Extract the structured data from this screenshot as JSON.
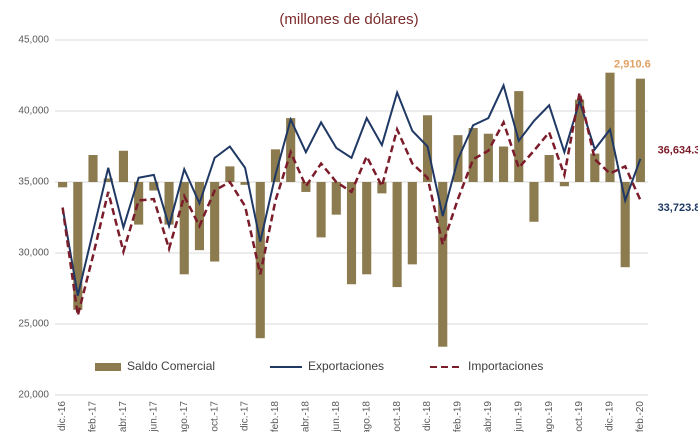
{
  "chart_data": {
    "type": "bar-line",
    "title": "(millones de dólares)",
    "categories": [
      "dic.-16",
      null,
      "feb.-17",
      null,
      "abr.-17",
      null,
      "jun.-17",
      null,
      "ago.-17",
      null,
      "oct.-17",
      null,
      "dic.-17",
      null,
      "feb.-18",
      null,
      "abr.-18",
      null,
      "jun.-18",
      null,
      "ago.-18",
      null,
      "oct.-18",
      null,
      "dic.-18",
      null,
      "feb.-19",
      null,
      "abr.-19",
      null,
      "jun.-19",
      null,
      "ago.-19",
      null,
      "oct.-19",
      null,
      "dic.-19",
      null,
      "feb.-20"
    ],
    "series": [
      {
        "name": "Saldo Comercial",
        "type": "bar",
        "axis": "y2",
        "color": "#8c7b4f",
        "label_color": "#e0a062",
        "values": [
          -150,
          -3600,
          760,
          100,
          880,
          -1200,
          -240,
          -1200,
          -2600,
          -1920,
          -2240,
          440,
          -80,
          -4400,
          920,
          1800,
          -280,
          -1560,
          -920,
          -2880,
          -2600,
          -320,
          -2960,
          -2320,
          1880,
          -4640,
          1320,
          1520,
          1360,
          1000,
          2560,
          -1120,
          760,
          -120,
          2320,
          800,
          3080,
          -2400,
          2910.6
        ],
        "value_labels": [
          null,
          null,
          null,
          null,
          null,
          null,
          null,
          null,
          null,
          null,
          null,
          null,
          null,
          null,
          null,
          null,
          null,
          null,
          null,
          null,
          null,
          null,
          null,
          null,
          null,
          null,
          null,
          null,
          null,
          null,
          null,
          null,
          null,
          null,
          null,
          null,
          null,
          null,
          "2,910.6"
        ]
      },
      {
        "name": "Exportaciones",
        "type": "line",
        "color": "#1f3864",
        "label_color": "#7b1c2a",
        "values": [
          33200,
          27000,
          31500,
          36000,
          31800,
          35300,
          35500,
          31900,
          35900,
          33500,
          36700,
          37500,
          36000,
          30800,
          35500,
          39400,
          37100,
          39200,
          37400,
          36700,
          39500,
          37600,
          41300,
          38600,
          37500,
          32600,
          36600,
          39000,
          39500,
          41800,
          37900,
          39300,
          40400,
          37100,
          40700,
          37300,
          38700,
          33700,
          36634.3
        ],
        "value_labels": [
          null,
          null,
          null,
          null,
          null,
          null,
          null,
          null,
          null,
          null,
          null,
          null,
          null,
          null,
          null,
          null,
          null,
          null,
          null,
          null,
          null,
          null,
          null,
          null,
          null,
          null,
          null,
          null,
          null,
          null,
          null,
          null,
          null,
          null,
          null,
          null,
          null,
          null,
          "36,634.3"
        ]
      },
      {
        "name": "Importaciones",
        "type": "line",
        "dashed": true,
        "color": "#7b1c2a",
        "label_color": "#1f3864",
        "values": [
          33200,
          25600,
          29800,
          34300,
          30100,
          33700,
          33800,
          30300,
          34000,
          31900,
          34400,
          35000,
          33300,
          28500,
          33700,
          37100,
          34700,
          36300,
          35000,
          34300,
          36800,
          34700,
          38700,
          36300,
          35300,
          30600,
          33800,
          36600,
          37200,
          39200,
          36000,
          37200,
          38500,
          35500,
          41300,
          36600,
          35600,
          36100,
          33723.8
        ],
        "value_labels": [
          null,
          null,
          null,
          null,
          null,
          null,
          null,
          null,
          null,
          null,
          null,
          null,
          null,
          null,
          null,
          null,
          null,
          null,
          null,
          null,
          null,
          null,
          null,
          null,
          null,
          null,
          null,
          null,
          null,
          null,
          null,
          null,
          null,
          null,
          null,
          null,
          null,
          null,
          "33,723.8"
        ]
      }
    ],
    "ylim": [
      20000,
      45000
    ],
    "yticks": [
      {
        "value": 20000,
        "label": "20,000"
      },
      {
        "value": 25000,
        "label": "25,000"
      },
      {
        "value": 30000,
        "label": "30,000"
      },
      {
        "value": 35000,
        "label": "35,000"
      },
      {
        "value": 40000,
        "label": "40,000"
      },
      {
        "value": 45000,
        "label": "45,000"
      }
    ],
    "y2lim": [
      -6000,
      4000
    ],
    "grid": true,
    "legend": "bottom"
  }
}
